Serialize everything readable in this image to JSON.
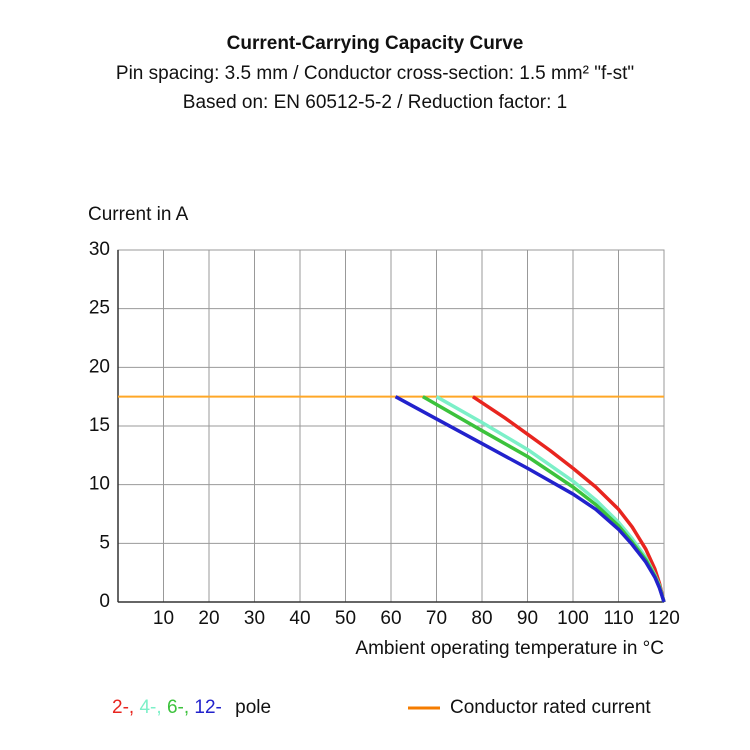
{
  "chart_data": {
    "type": "line",
    "title": "Current-Carrying Capacity Curve",
    "subtitle": "Pin spacing: 3.5 mm / Conductor cross-section: 1.5 mm² \"f-st\"",
    "subtitle2": "Based on: EN 60512-5-2 / Reduction factor: 1",
    "y_label": "Current in A",
    "x_label": "Ambient operating temperature in °C",
    "xlim": [
      0,
      120
    ],
    "xticks": [
      10,
      20,
      30,
      40,
      50,
      60,
      70,
      80,
      90,
      100,
      110,
      120
    ],
    "ylim": [
      0,
      30
    ],
    "yticks": [
      0,
      5,
      10,
      15,
      20,
      25,
      30
    ],
    "grid": true,
    "legend_suffix": "pole",
    "series": [
      {
        "name": "Conductor rated current",
        "color": "#ffa726",
        "legend_color": "#f57c00",
        "x": [
          0,
          120
        ],
        "values": [
          17.5,
          17.5
        ]
      },
      {
        "name": "2-,",
        "color": "#e8251f",
        "x": [
          78,
          85,
          90,
          95,
          100,
          105,
          110,
          113,
          116,
          118,
          119,
          120
        ],
        "values": [
          17.5,
          15.7,
          14.3,
          12.9,
          11.4,
          9.8,
          7.9,
          6.4,
          4.5,
          2.8,
          1.6,
          0
        ]
      },
      {
        "name": "4-,",
        "color": "#7cf0c8",
        "x": [
          70,
          80,
          90,
          100,
          105,
          110,
          113,
          116,
          118,
          119,
          120
        ],
        "values": [
          17.5,
          15.3,
          13.0,
          10.3,
          8.7,
          6.8,
          5.4,
          3.8,
          2.3,
          1.4,
          0
        ]
      },
      {
        "name": "6-,",
        "color": "#3cc23c",
        "x": [
          67,
          80,
          90,
          100,
          105,
          110,
          113,
          116,
          118,
          119,
          120
        ],
        "values": [
          17.5,
          14.6,
          12.4,
          9.8,
          8.3,
          6.5,
          5.1,
          3.6,
          2.2,
          1.3,
          0
        ]
      },
      {
        "name": "12-",
        "color": "#2222cc",
        "x": [
          61,
          70,
          80,
          90,
          100,
          105,
          110,
          113,
          116,
          118,
          119,
          120
        ],
        "values": [
          17.5,
          15.6,
          13.5,
          11.4,
          9.2,
          7.9,
          6.2,
          4.9,
          3.4,
          2.1,
          1.2,
          0
        ]
      }
    ]
  }
}
